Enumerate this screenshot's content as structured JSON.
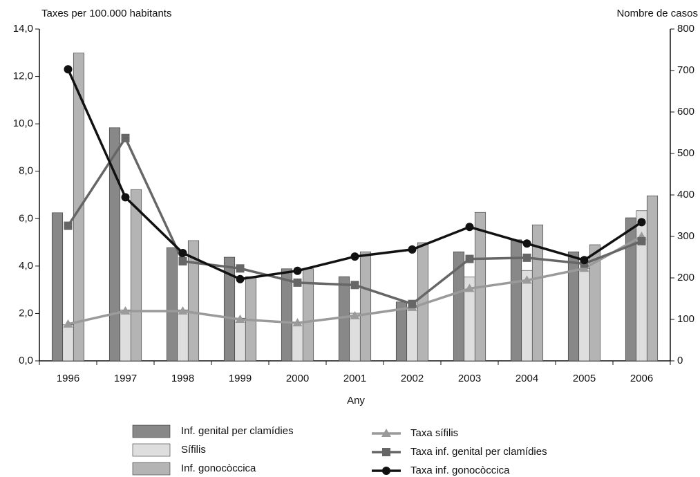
{
  "chart_data": {
    "type": "bar-line",
    "y_label": "Taxes per 100.000 habitants",
    "y2_label": "Nombre de casos",
    "x_label": "Any",
    "categories": [
      "1996",
      "1997",
      "1998",
      "1999",
      "2000",
      "2001",
      "2002",
      "2003",
      "2004",
      "2005",
      "2006"
    ],
    "ylim": [
      0,
      14
    ],
    "yticks": [
      {
        "value": 0,
        "label": "0,0"
      },
      {
        "value": 2,
        "label": "2,0"
      },
      {
        "value": 4,
        "label": "4,0"
      },
      {
        "value": 6,
        "label": "6,0"
      },
      {
        "value": 8,
        "label": "8,0"
      },
      {
        "value": 10,
        "label": "10,0"
      },
      {
        "value": 12,
        "label": "12,0"
      },
      {
        "value": 14,
        "label": "14,0"
      }
    ],
    "y2lim": [
      0,
      800
    ],
    "y2ticks": [
      0,
      100,
      200,
      300,
      400,
      500,
      600,
      700,
      800
    ],
    "series": [
      {
        "name": "Inf. genital per clamídies",
        "kind": "bar",
        "axis": "y2",
        "color": "#888888",
        "values": [
          357,
          562,
          273,
          250,
          222,
          203,
          142,
          263,
          292,
          263,
          345
        ]
      },
      {
        "name": "Sífilis",
        "kind": "bar",
        "axis": "y2",
        "color": "#dedede",
        "values": [
          87,
          123,
          123,
          103,
          92,
          115,
          128,
          202,
          218,
          223,
          362
        ]
      },
      {
        "name": "Inf. gonocòccica",
        "kind": "bar",
        "axis": "y2",
        "color": "#b4b4b4",
        "values": [
          742,
          413,
          290,
          203,
          222,
          263,
          285,
          358,
          328,
          280,
          398
        ]
      },
      {
        "name": "Taxa sífilis",
        "kind": "line",
        "marker": "triangle",
        "color": "#9a9a9a",
        "values": [
          1.55,
          2.1,
          2.1,
          1.75,
          1.6,
          1.9,
          2.25,
          3.05,
          3.4,
          3.9,
          5.25
        ]
      },
      {
        "name": "Taxa inf. genital per clamídies",
        "kind": "line",
        "marker": "square",
        "color": "#666666",
        "values": [
          5.7,
          9.4,
          4.2,
          3.9,
          3.3,
          3.2,
          2.4,
          4.3,
          4.35,
          4.1,
          5.05
        ]
      },
      {
        "name": "Taxa inf. gonocòccica",
        "kind": "line",
        "marker": "circle",
        "color": "#111111",
        "values": [
          12.3,
          6.9,
          4.55,
          3.45,
          3.8,
          4.4,
          4.7,
          5.65,
          4.95,
          4.25,
          5.85
        ]
      }
    ]
  }
}
